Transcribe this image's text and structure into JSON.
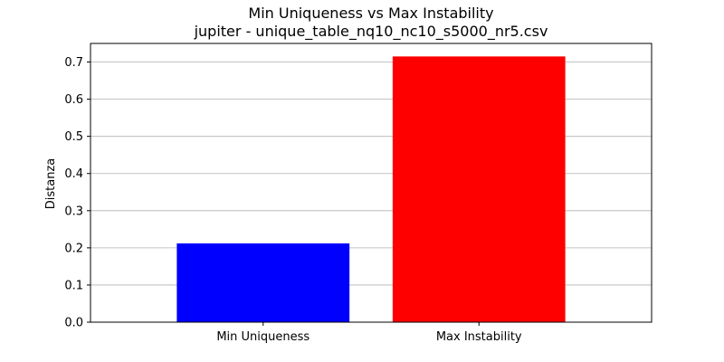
{
  "chart_data": {
    "type": "bar",
    "title": "Min Uniqueness vs Max Instability",
    "subtitle": "jupiter - unique_table_nq10_nc10_s5000_nr5.csv",
    "xlabel": "",
    "ylabel": "Distanza",
    "categories": [
      "Min Uniqueness",
      "Max Instability"
    ],
    "values": [
      0.212,
      0.715
    ],
    "colors": [
      "#0000ff",
      "#ff0000"
    ],
    "ylim": [
      0,
      0.75
    ],
    "yticks": [
      0.0,
      0.1,
      0.2,
      0.3,
      0.4,
      0.5,
      0.6,
      0.7
    ],
    "ytick_labels": [
      "0.0",
      "0.1",
      "0.2",
      "0.3",
      "0.4",
      "0.5",
      "0.6",
      "0.7"
    ],
    "grid": "y",
    "legend": "none"
  }
}
